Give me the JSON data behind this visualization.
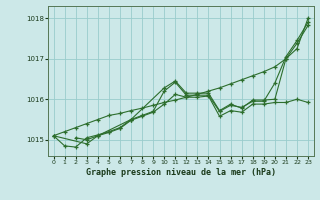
{
  "title": "Graphe pression niveau de la mer (hPa)",
  "bg_color": "#cce8e8",
  "grid_color": "#99cccc",
  "line_color": "#2d6e2d",
  "ylim": [
    1014.6,
    1018.3
  ],
  "xlim": [
    -0.5,
    23.5
  ],
  "yticks": [
    1015,
    1016,
    1017,
    1018
  ],
  "xticks": [
    0,
    1,
    2,
    3,
    4,
    5,
    6,
    7,
    8,
    9,
    10,
    11,
    12,
    13,
    14,
    15,
    16,
    17,
    18,
    19,
    20,
    21,
    22,
    23
  ],
  "series": [
    {
      "x": [
        0,
        1,
        2,
        3,
        4,
        5,
        6,
        7,
        8,
        9,
        10,
        11,
        12,
        13,
        14,
        15,
        16,
        17,
        18,
        19,
        20,
        21,
        22,
        23
      ],
      "y": [
        1015.1,
        1015.2,
        1015.3,
        1015.4,
        1015.5,
        1015.6,
        1015.65,
        1015.72,
        1015.78,
        1015.85,
        1015.92,
        1015.98,
        1016.05,
        1016.12,
        1016.2,
        1016.28,
        1016.38,
        1016.48,
        1016.58,
        1016.68,
        1016.8,
        1017.0,
        1017.25,
        1018.0
      ]
    },
    {
      "x": [
        0,
        1,
        2,
        3,
        4,
        5,
        6,
        7,
        8,
        9,
        10,
        11,
        12,
        13,
        14,
        15,
        16,
        17,
        18,
        19,
        20,
        21,
        22,
        23
      ],
      "y": [
        1015.1,
        1014.85,
        1014.82,
        1015.05,
        1015.12,
        1015.2,
        1015.3,
        1015.5,
        1015.6,
        1015.7,
        1016.2,
        1016.42,
        1016.1,
        1016.1,
        1016.1,
        1015.7,
        1015.85,
        1015.8,
        1015.95,
        1015.95,
        1016.4,
        1017.05,
        1017.45,
        1017.9
      ]
    },
    {
      "x": [
        2,
        3,
        4,
        5,
        6,
        7,
        8,
        9,
        10,
        11,
        12,
        13,
        14,
        15,
        16,
        17,
        18,
        19,
        20,
        21,
        22,
        23
      ],
      "y": [
        1015.05,
        1015.0,
        1015.1,
        1015.18,
        1015.28,
        1015.48,
        1015.58,
        1015.68,
        1015.88,
        1016.12,
        1016.05,
        1016.05,
        1016.08,
        1015.58,
        1015.72,
        1015.68,
        1015.88,
        1015.88,
        1015.92,
        1015.92,
        1016.0,
        1015.92
      ]
    },
    {
      "x": [
        0,
        3,
        4,
        7,
        10,
        11,
        12,
        13,
        14,
        15,
        16,
        17,
        18,
        19,
        20,
        21,
        22,
        23
      ],
      "y": [
        1015.1,
        1014.9,
        1015.1,
        1015.5,
        1016.28,
        1016.45,
        1016.15,
        1016.15,
        1016.15,
        1015.72,
        1015.88,
        1015.78,
        1015.98,
        1015.98,
        1016.0,
        1017.0,
        1017.38,
        1017.82
      ]
    }
  ]
}
